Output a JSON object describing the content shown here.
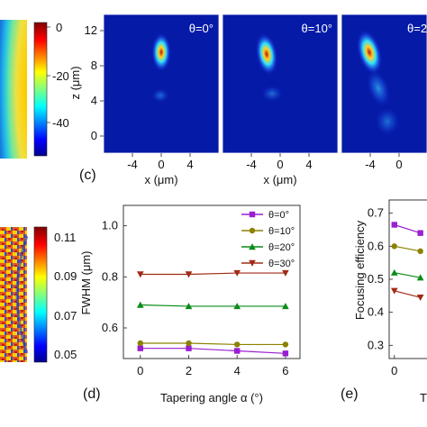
{
  "panels": {
    "c": {
      "label": "(c)"
    },
    "d": {
      "label": "(d)"
    },
    "e": {
      "label": "(e)"
    }
  },
  "colorbar_top": {
    "ticks": [
      "0",
      "-20",
      "-40"
    ]
  },
  "colorbar_bottom": {
    "ticks": [
      "0.11",
      "0.09",
      "0.07",
      "0.05"
    ]
  },
  "field_maps": {
    "z_axis_label": "z (μm)",
    "x_axis_label": "x (μm)",
    "z_ticks": [
      "12",
      "8",
      "4",
      "0"
    ],
    "x_ticks": [
      "-4",
      "0",
      "4"
    ],
    "map_titles": [
      "θ=0°",
      "θ=10°",
      "θ=2"
    ]
  },
  "colors": {
    "purple": "#9a1fd1",
    "olive": "#8b8100",
    "green": "#0a8c18",
    "red": "#a02b17",
    "map_bg": "#061aa8"
  },
  "chart_data": [
    {
      "type": "line",
      "panel": "d",
      "xlabel": "Tapering angle α (°)",
      "ylabel": "FWHM (μm)",
      "x": [
        0,
        2,
        4,
        6
      ],
      "xticks": [
        "0",
        "2",
        "4",
        "6"
      ],
      "yticks": [
        "0.6",
        "0.8",
        "1.0"
      ],
      "ylim": [
        0.48,
        1.08
      ],
      "xlim": [
        -0.7,
        6.6
      ],
      "legend_position": "top-right",
      "series": [
        {
          "name": "θ=0°",
          "color": "#9a1fd1",
          "marker": "square",
          "values": [
            0.52,
            0.52,
            0.51,
            0.5
          ]
        },
        {
          "name": "θ=10°",
          "color": "#8b8100",
          "marker": "circle",
          "values": [
            0.54,
            0.54,
            0.535,
            0.535
          ]
        },
        {
          "name": "θ=20°",
          "color": "#0a8c18",
          "marker": "triangle-up",
          "values": [
            0.69,
            0.685,
            0.685,
            0.685
          ]
        },
        {
          "name": "θ=30°",
          "color": "#a02b17",
          "marker": "triangle-down",
          "values": [
            0.81,
            0.81,
            0.815,
            0.815
          ]
        }
      ]
    },
    {
      "type": "line",
      "panel": "e",
      "ylabel": "Focusing efficiency",
      "xlabel": "T",
      "x": [
        0,
        2
      ],
      "xticks": [
        "0"
      ],
      "yticks": [
        "0.3",
        "0.4",
        "0.5",
        "0.6",
        "0.7"
      ],
      "ylim": [
        0.26,
        0.74
      ],
      "series": [
        {
          "name": "θ=0°",
          "color": "#9a1fd1",
          "marker": "square",
          "values": [
            0.665,
            0.64
          ]
        },
        {
          "name": "θ=10°",
          "color": "#8b8100",
          "marker": "circle",
          "values": [
            0.6,
            0.585
          ]
        },
        {
          "name": "θ=20°",
          "color": "#0a8c18",
          "marker": "triangle-up",
          "values": [
            0.52,
            0.505
          ]
        },
        {
          "name": "θ=30°",
          "color": "#a02b17",
          "marker": "triangle-down",
          "values": [
            0.465,
            0.445
          ]
        }
      ]
    }
  ]
}
